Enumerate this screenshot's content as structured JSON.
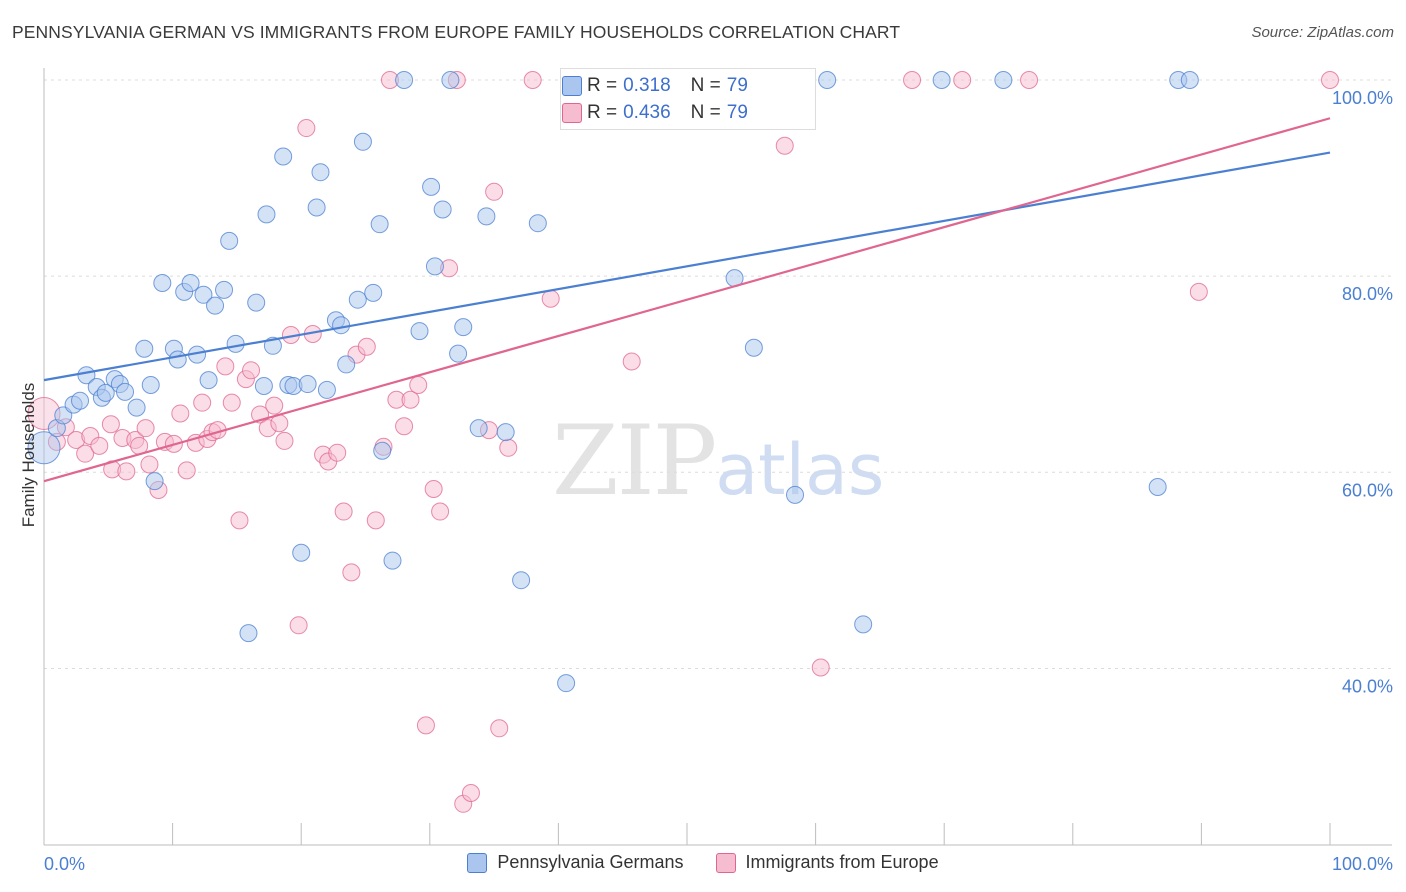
{
  "title": "PENNSYLVANIA GERMAN VS IMMIGRANTS FROM EUROPE FAMILY HOUSEHOLDS CORRELATION CHART",
  "source": "Source: ZipAtlas.com",
  "watermark": {
    "zip": "ZIP",
    "atlas": "atlas"
  },
  "stats": {
    "row1": {
      "r_label": "R =",
      "r_value": "0.318",
      "n_label": "N =",
      "n_value": "79"
    },
    "row2": {
      "r_label": "R =",
      "r_value": "0.436",
      "n_label": "N =",
      "n_value": "79"
    }
  },
  "chart_data": {
    "type": "scatter",
    "xlabel": "",
    "ylabel": "Family Households",
    "x_ticks": [
      "0.0%",
      "100.0%"
    ],
    "y_ticks": [
      "40.0%",
      "60.0%",
      "80.0%",
      "100.0%"
    ],
    "xlim": [
      0,
      100
    ],
    "ylim": [
      22,
      100
    ],
    "grid": "horizontal-dashed",
    "legend_position": "bottom-center",
    "colors": {
      "blue": "#4a7fd1",
      "blue_fill": "#aac5ee",
      "pink": "#e0658f",
      "pink_fill": "#f6bccf"
    },
    "series": [
      {
        "name": "Pennsylvania Germans",
        "color": "#4a7fd1",
        "trend": {
          "x0": 0,
          "y0": 69.4,
          "x1": 100,
          "y1": 92.6
        },
        "points": [
          [
            0,
            62.5
          ],
          [
            1,
            64.5
          ],
          [
            1.5,
            65.8
          ],
          [
            2.3,
            66.9
          ],
          [
            2.8,
            67.3
          ],
          [
            3.3,
            69.9
          ],
          [
            4.1,
            68.7
          ],
          [
            4.5,
            67.6
          ],
          [
            4.8,
            68.1
          ],
          [
            5.5,
            69.5
          ],
          [
            5.9,
            69
          ],
          [
            6.3,
            68.2
          ],
          [
            7.2,
            66.6
          ],
          [
            7.8,
            72.6
          ],
          [
            8.3,
            68.9
          ],
          [
            8.6,
            59.1
          ],
          [
            9.2,
            79.3
          ],
          [
            10.1,
            72.6
          ],
          [
            10.4,
            71.5
          ],
          [
            10.9,
            78.4
          ],
          [
            11.4,
            79.3
          ],
          [
            11.9,
            72
          ],
          [
            12.4,
            78.1
          ],
          [
            12.8,
            69.4
          ],
          [
            13.3,
            77
          ],
          [
            14,
            78.6
          ],
          [
            14.4,
            83.6
          ],
          [
            14.9,
            73.1
          ],
          [
            15.9,
            43.6
          ],
          [
            16.5,
            77.3
          ],
          [
            17.1,
            68.8
          ],
          [
            17.3,
            86.3
          ],
          [
            17.8,
            72.9
          ],
          [
            18.6,
            92.2
          ],
          [
            19,
            68.9
          ],
          [
            19.4,
            68.8
          ],
          [
            20,
            51.8
          ],
          [
            20.5,
            69
          ],
          [
            21.2,
            87
          ],
          [
            21.5,
            90.6
          ],
          [
            22,
            68.4
          ],
          [
            22.7,
            75.5
          ],
          [
            23.1,
            75
          ],
          [
            23.5,
            71
          ],
          [
            24.4,
            77.6
          ],
          [
            24.8,
            93.7
          ],
          [
            25.6,
            78.3
          ],
          [
            26.1,
            85.3
          ],
          [
            26.3,
            62.2
          ],
          [
            27.1,
            51
          ],
          [
            28,
            100
          ],
          [
            29.2,
            74.4
          ],
          [
            30.1,
            89.1
          ],
          [
            30.4,
            81
          ],
          [
            31,
            86.8
          ],
          [
            31.6,
            100
          ],
          [
            32.2,
            72.1
          ],
          [
            32.6,
            74.8
          ],
          [
            33.8,
            64.5
          ],
          [
            34.4,
            86.1
          ],
          [
            35.9,
            64.1
          ],
          [
            37.1,
            49
          ],
          [
            38.4,
            85.4
          ],
          [
            40.6,
            38.5
          ],
          [
            41.3,
            100
          ],
          [
            43.1,
            100
          ],
          [
            47.4,
            100
          ],
          [
            50.5,
            100
          ],
          [
            53.7,
            79.8
          ],
          [
            55.2,
            72.7
          ],
          [
            57.3,
            100
          ],
          [
            58.4,
            57.7
          ],
          [
            60.9,
            100
          ],
          [
            63.7,
            44.5
          ],
          [
            69.8,
            100
          ],
          [
            74.6,
            100
          ],
          [
            86.6,
            58.5
          ],
          [
            88.2,
            100
          ],
          [
            89.1,
            100
          ]
        ]
      },
      {
        "name": "Immigrants from Europe",
        "color": "#e0658f",
        "trend": {
          "x0": 0,
          "y0": 59.1,
          "x1": 100,
          "y1": 96.1
        },
        "points": [
          [
            0,
            66
          ],
          [
            1,
            63.1
          ],
          [
            1.7,
            64.6
          ],
          [
            2.5,
            63.3
          ],
          [
            3.2,
            61.9
          ],
          [
            3.6,
            63.7
          ],
          [
            4.3,
            62.7
          ],
          [
            5.2,
            64.9
          ],
          [
            5.3,
            60.3
          ],
          [
            6.1,
            63.5
          ],
          [
            6.4,
            60.1
          ],
          [
            7.1,
            63.3
          ],
          [
            7.4,
            62.7
          ],
          [
            7.9,
            64.5
          ],
          [
            8.2,
            60.8
          ],
          [
            8.9,
            58.2
          ],
          [
            9.4,
            63.1
          ],
          [
            10.1,
            62.9
          ],
          [
            10.6,
            66
          ],
          [
            11.1,
            60.2
          ],
          [
            11.8,
            63
          ],
          [
            12.3,
            67.1
          ],
          [
            12.7,
            63.4
          ],
          [
            13.1,
            64.1
          ],
          [
            13.5,
            64.3
          ],
          [
            14.1,
            70.8
          ],
          [
            14.6,
            67.1
          ],
          [
            15.2,
            55.1
          ],
          [
            15.7,
            69.5
          ],
          [
            16.1,
            70.4
          ],
          [
            16.8,
            65.9
          ],
          [
            17.4,
            64.5
          ],
          [
            17.9,
            66.8
          ],
          [
            18.3,
            65
          ],
          [
            18.7,
            63.2
          ],
          [
            19.2,
            74
          ],
          [
            19.8,
            44.4
          ],
          [
            20.4,
            95.1
          ],
          [
            20.9,
            74.1
          ],
          [
            21.7,
            61.8
          ],
          [
            22.1,
            61.1
          ],
          [
            22.8,
            62
          ],
          [
            23.3,
            56
          ],
          [
            23.9,
            49.8
          ],
          [
            24.3,
            72
          ],
          [
            25.1,
            72.8
          ],
          [
            25.8,
            55.1
          ],
          [
            26.4,
            62.6
          ],
          [
            26.9,
            100
          ],
          [
            27.4,
            67.4
          ],
          [
            28,
            64.7
          ],
          [
            28.5,
            67.4
          ],
          [
            29.1,
            68.9
          ],
          [
            29.7,
            34.2
          ],
          [
            30.3,
            58.3
          ],
          [
            30.8,
            56
          ],
          [
            31.5,
            80.8
          ],
          [
            32.1,
            100
          ],
          [
            32.6,
            26.2
          ],
          [
            33.2,
            27.3
          ],
          [
            34.6,
            64.3
          ],
          [
            35,
            88.6
          ],
          [
            35.4,
            33.9
          ],
          [
            36.1,
            62.5
          ],
          [
            38,
            100
          ],
          [
            39.4,
            77.7
          ],
          [
            42.1,
            100
          ],
          [
            45.7,
            71.3
          ],
          [
            48.2,
            100
          ],
          [
            51.5,
            100
          ],
          [
            53.2,
            100
          ],
          [
            56.9,
            100
          ],
          [
            57.6,
            93.3
          ],
          [
            60.4,
            40.1
          ],
          [
            67.5,
            100
          ],
          [
            71.4,
            100
          ],
          [
            76.6,
            100
          ],
          [
            89.8,
            78.4
          ],
          [
            100,
            100
          ]
        ]
      }
    ]
  }
}
